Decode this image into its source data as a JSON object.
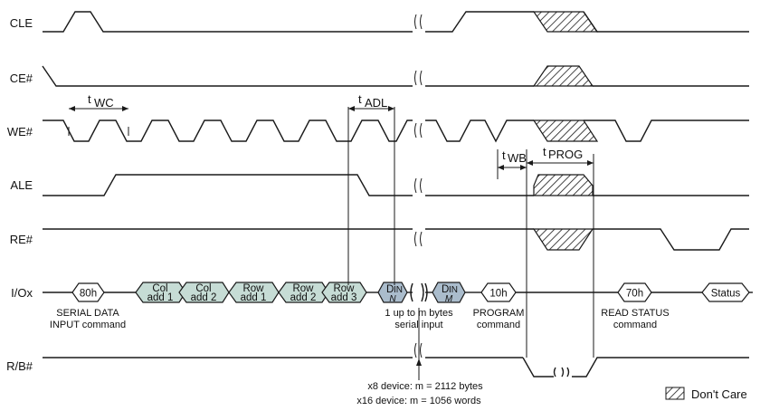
{
  "signals": {
    "cle": "CLE",
    "ce": "CE#",
    "we": "WE#",
    "ale": "ALE",
    "re": "RE#",
    "io": "I/Ox",
    "rb": "R/B#"
  },
  "params": {
    "twc": {
      "main": "t",
      "sub": "WC"
    },
    "tadl": {
      "main": "t",
      "sub": "ADL"
    },
    "twb": {
      "main": "t",
      "sub": "WB"
    },
    "tprog": {
      "main": "t",
      "sub": "PROG"
    }
  },
  "io_boxes": {
    "cmd_80h": "80h",
    "col1": [
      "Col",
      "add 1"
    ],
    "col2": [
      "Col",
      "add 2"
    ],
    "row1": [
      "Row",
      "add 1"
    ],
    "row2": [
      "Row",
      "add 2"
    ],
    "row3": [
      "Row",
      "add 3"
    ],
    "din_n": {
      "main": "D",
      "sup": "IN",
      "sub": "N"
    },
    "din_m": {
      "main": "D",
      "sup": "IN",
      "sub": "M"
    },
    "cmd_10h": "10h",
    "cmd_70h": "70h",
    "status": "Status"
  },
  "annotations": {
    "serial_data": [
      "SERIAL DATA",
      "INPUT command"
    ],
    "up_to_m": [
      "1 up to m bytes",
      "serial input"
    ],
    "program": [
      "PROGRAM",
      "command"
    ],
    "read_status": [
      "READ STATUS",
      "command"
    ],
    "x8": "x8 device: m = 2112 bytes",
    "x16": "x16 device: m = 1056 words"
  },
  "legend": {
    "dont_care": "Don't Care"
  }
}
